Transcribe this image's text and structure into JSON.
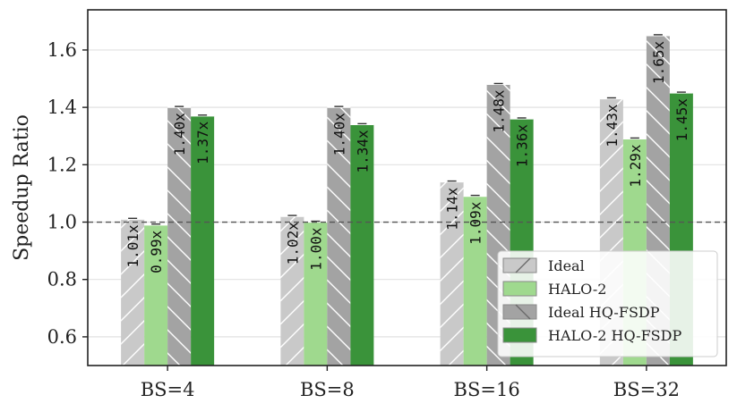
{
  "chart_data": {
    "type": "bar",
    "title": "",
    "xlabel": "",
    "ylabel": "Speedup Ratio",
    "ylim": [
      0.5,
      1.74
    ],
    "yticks": [
      "0.6",
      "0.8",
      "1.0",
      "1.2",
      "1.4",
      "1.6"
    ],
    "categories": [
      "BS=4",
      "BS=8",
      "BS=16",
      "BS=32"
    ],
    "reference_line": 1.0,
    "grid": "horizontal",
    "legend_position": "bottom-right",
    "series": [
      {
        "name": "Ideal",
        "values": [
          1.01,
          1.02,
          1.14,
          1.43
        ],
        "labels": [
          "1.01x",
          "1.02x",
          "1.14x",
          "1.43x"
        ],
        "color": "#c9c9c9",
        "hatch": "forward-slash"
      },
      {
        "name": "HALO-2",
        "values": [
          0.99,
          1.0,
          1.09,
          1.29
        ],
        "labels": [
          "0.99x",
          "1.00x",
          "1.09x",
          "1.29x"
        ],
        "color": "#9fd98e",
        "hatch": "none"
      },
      {
        "name": "Ideal HQ-FSDP",
        "values": [
          1.4,
          1.4,
          1.48,
          1.65
        ],
        "labels": [
          "1.40x",
          "1.40x",
          "1.48x",
          "1.65x"
        ],
        "color": "#a3a3a3",
        "hatch": "back-slash"
      },
      {
        "name": "HALO-2 HQ-FSDP",
        "values": [
          1.37,
          1.34,
          1.36,
          1.45
        ],
        "labels": [
          "1.37x",
          "1.34x",
          "1.36x",
          "1.45x"
        ],
        "color": "#3a933a",
        "hatch": "none"
      }
    ]
  }
}
